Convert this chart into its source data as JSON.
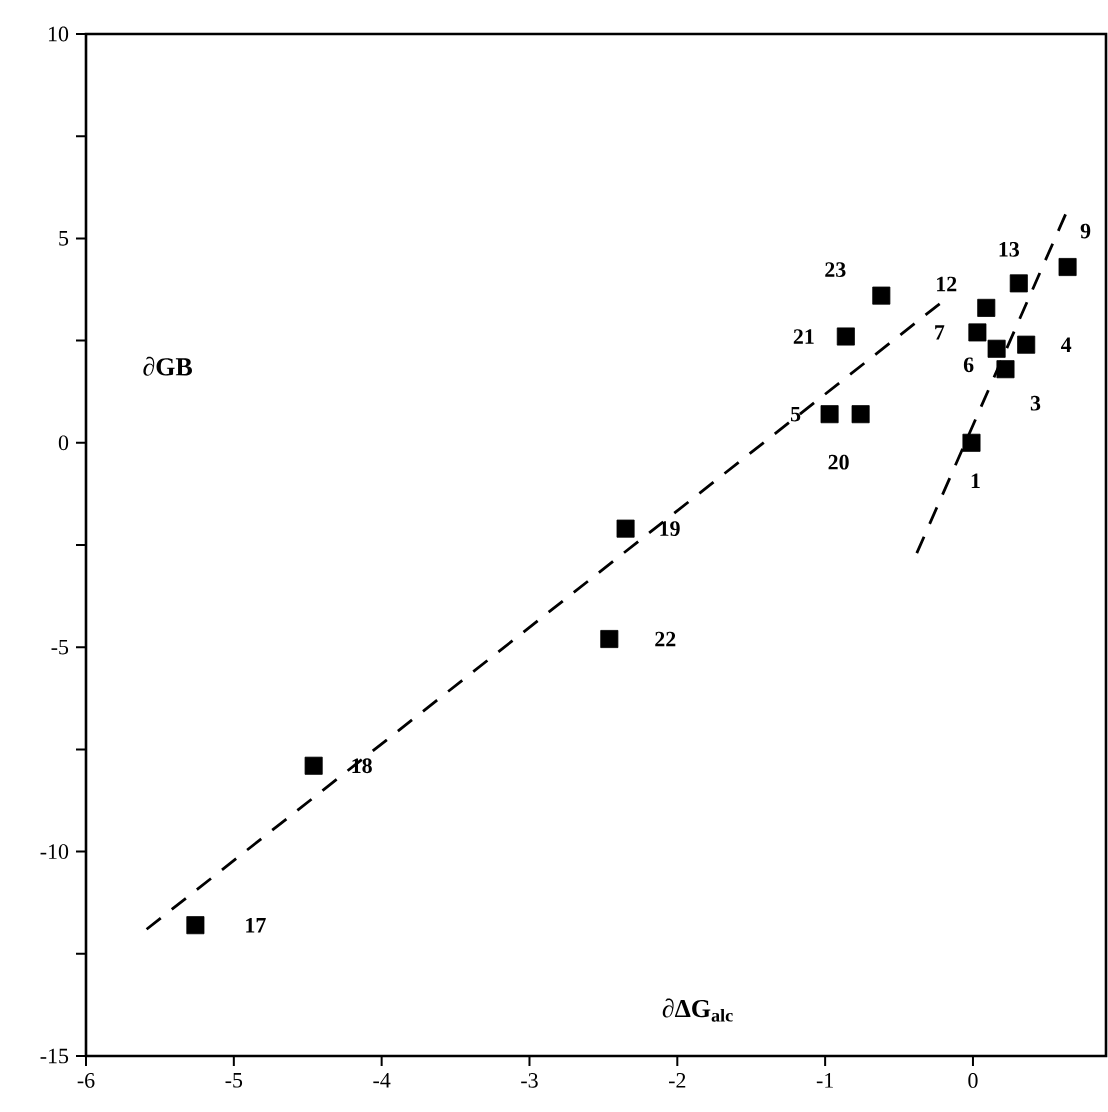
{
  "chart_data": {
    "type": "scatter",
    "xlabel": "∂ΔG$_{alc}$",
    "ylabel": "∂GB",
    "xlim": [
      -6,
      0.9
    ],
    "ylim": [
      -15,
      10
    ],
    "xticks": [
      -6,
      -5,
      -4,
      -3,
      -2,
      -1,
      0
    ],
    "yticks": [
      -15,
      {
        "value": -12.5,
        "label": null
      },
      -10,
      {
        "value": -7.5,
        "label": null
      },
      -5,
      {
        "value": -2.5,
        "label": null
      },
      0,
      {
        "value": 2.5,
        "label": null
      },
      5,
      {
        "value": 7.5,
        "label": null
      },
      10
    ],
    "marker": "square",
    "series": [
      {
        "color": "#000000",
        "x": [
          -5.26,
          -4.46,
          -2.35,
          -2.46,
          -0.97,
          -0.76,
          -0.86,
          -0.62,
          -0.01,
          0.03,
          0.09,
          0.31,
          0.64,
          0.36,
          0.16,
          0.22
        ],
        "values": [
          -11.8,
          -7.9,
          -2.1,
          -4.8,
          0.7,
          0.7,
          2.6,
          3.6,
          0.0,
          2.7,
          3.3,
          3.9,
          4.3,
          2.4,
          2.3,
          1.8
        ]
      },
      {
        "type": "line",
        "line_style": "dashed",
        "marker": "none",
        "color": "#000000",
        "x": [
          -5.59,
          -0.19
        ],
        "values": [
          -11.9,
          3.5
        ]
      },
      {
        "type": "line",
        "line_style": "dashed",
        "marker": "none",
        "color": "#000000",
        "x": [
          -0.38,
          0.64
        ],
        "values": [
          -2.7,
          5.7
        ]
      }
    ],
    "annotations": [
      {
        "text": "17",
        "x": -5.26,
        "y": -11.8
      },
      {
        "text": "18",
        "x": -4.46,
        "y": -7.9
      },
      {
        "text": "19",
        "x": -2.35,
        "y": -2.1
      },
      {
        "text": "22",
        "x": -2.46,
        "y": -4.8
      },
      {
        "text": "5",
        "x": -0.97,
        "y": 0.7
      },
      {
        "text": "20",
        "x": -0.76,
        "y": 0.7
      },
      {
        "text": "21",
        "x": -0.86,
        "y": 2.6
      },
      {
        "text": "23",
        "x": -0.62,
        "y": 3.6
      },
      {
        "text": "1",
        "x": -0.01,
        "y": 0.0
      },
      {
        "text": "7",
        "x": 0.03,
        "y": 2.7
      },
      {
        "text": "12",
        "x": 0.09,
        "y": 3.3
      },
      {
        "text": "13",
        "x": 0.31,
        "y": 3.9
      },
      {
        "text": "9",
        "x": 0.64,
        "y": 4.3
      },
      {
        "text": "4",
        "x": 0.36,
        "y": 2.4
      },
      {
        "text": "6",
        "x": 0.16,
        "y": 2.3
      },
      {
        "text": "3",
        "x": 0.22,
        "y": 1.8
      }
    ]
  }
}
